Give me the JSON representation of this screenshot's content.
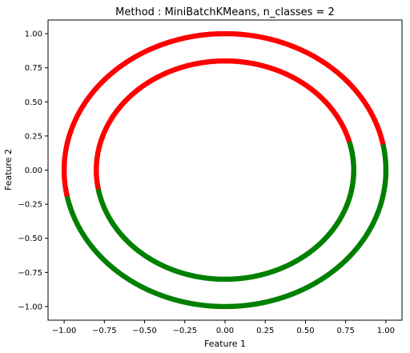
{
  "chart_data": {
    "type": "scatter",
    "title": "Method : MiniBatchKMeans, n_classes = 2",
    "xlabel": "Feature 1",
    "ylabel": "Feature 2",
    "xlim": [
      -1.1,
      1.1
    ],
    "ylim": [
      -1.1,
      1.1
    ],
    "x_ticks": [
      -1.0,
      -0.75,
      -0.5,
      -0.25,
      0.0,
      0.25,
      0.5,
      0.75,
      1.0
    ],
    "y_ticks": [
      -1.0,
      -0.75,
      -0.5,
      -0.25,
      0.0,
      0.25,
      0.5,
      0.75,
      1.0
    ],
    "x_tick_labels": [
      "−1.00",
      "−0.75",
      "−0.50",
      "−0.25",
      "0.00",
      "0.25",
      "0.50",
      "0.75",
      "1.00"
    ],
    "y_tick_labels": [
      "−1.00",
      "−0.75",
      "−0.50",
      "−0.25",
      "0.00",
      "0.25",
      "0.50",
      "0.75",
      "1.00"
    ],
    "grid": false,
    "series": [
      {
        "color": "#ff0000",
        "arcs": [
          {
            "radius": 1.0,
            "from_deg": 10,
            "to_deg": 192
          },
          {
            "radius": 0.8,
            "from_deg": 14,
            "to_deg": 191
          }
        ]
      },
      {
        "color": "#008000",
        "arcs": [
          {
            "radius": 1.0,
            "from_deg": 192,
            "to_deg": 370
          },
          {
            "radius": 0.8,
            "from_deg": 191,
            "to_deg": 374
          }
        ]
      }
    ]
  }
}
